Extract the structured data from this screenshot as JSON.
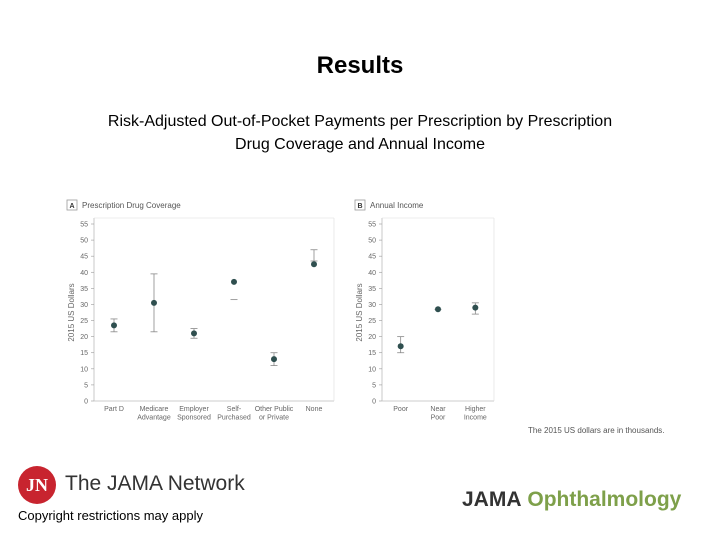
{
  "header": {
    "title": "Results",
    "subtitle": "Risk-Adjusted Out-of-Pocket Payments per Prescription by Prescription Drug Coverage and Annual Income"
  },
  "footer": {
    "logo_initials": "JN",
    "network_name": "The JAMA Network",
    "copyright": "Copyright restrictions may apply",
    "journal_part1": "JAMA",
    "journal_part2": "Ophthalmology",
    "note": "The 2015 US dollars are in thousands."
  },
  "colors": {
    "point": "#2f4f4f",
    "brand_red": "#c8242f",
    "brand_green": "#7ea04a"
  },
  "chart_data": [
    {
      "type": "scatter",
      "panel_letter": "A",
      "title": "Prescription Drug Coverage",
      "ylabel": "2015 US Dollars",
      "ylim": [
        0,
        55
      ],
      "yticks": [
        0,
        5,
        10,
        15,
        20,
        25,
        30,
        35,
        40,
        45,
        50,
        55
      ],
      "grid": false,
      "categories": [
        "Part D",
        "Medicare Advantage",
        "Employer Sponsored",
        "Self-Purchased",
        "Other Public or Private",
        "None"
      ],
      "category_lines": [
        [
          "Part D"
        ],
        [
          "Medicare",
          "Advantage"
        ],
        [
          "Employer",
          "Sponsored"
        ],
        [
          "Self-",
          "Purchased"
        ],
        [
          "Other Public",
          "or Private"
        ],
        [
          "None"
        ]
      ],
      "values": [
        23.5,
        30.5,
        21,
        37,
        13,
        42.5
      ],
      "error_low": [
        21.5,
        21.5,
        19.5,
        31.5,
        11,
        43.5
      ],
      "error_high": [
        25.5,
        39.5,
        22.5,
        31.5,
        15,
        47
      ]
    },
    {
      "type": "scatter",
      "panel_letter": "B",
      "title": "Annual Income",
      "ylabel": "2015 US Dollars",
      "ylim": [
        0,
        55
      ],
      "yticks": [
        0,
        5,
        10,
        15,
        20,
        25,
        30,
        35,
        40,
        45,
        50,
        55
      ],
      "grid": false,
      "categories": [
        "Poor",
        "Near Poor",
        "Higher Income"
      ],
      "category_lines": [
        [
          "Poor"
        ],
        [
          "Near",
          "Poor"
        ],
        [
          "Higher",
          "Income"
        ]
      ],
      "values": [
        17,
        28.5,
        29
      ],
      "error_low": [
        15,
        28.5,
        27
      ],
      "error_high": [
        20,
        28.5,
        30.5
      ]
    }
  ]
}
